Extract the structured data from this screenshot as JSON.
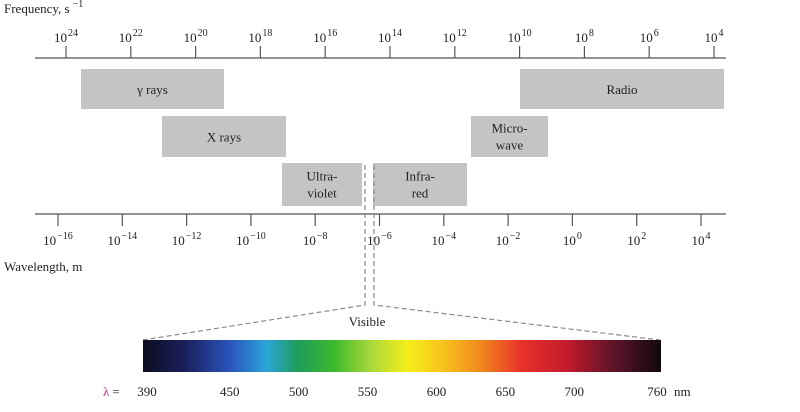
{
  "frequency_axis": {
    "label": "Frequency, s",
    "label_exp": "−1",
    "ticks": [
      {
        "base": "10",
        "exp": "24"
      },
      {
        "base": "10",
        "exp": "22"
      },
      {
        "base": "10",
        "exp": "20"
      },
      {
        "base": "10",
        "exp": "18"
      },
      {
        "base": "10",
        "exp": "16"
      },
      {
        "base": "10",
        "exp": "14"
      },
      {
        "base": "10",
        "exp": "12"
      },
      {
        "base": "10",
        "exp": "10"
      },
      {
        "base": "10",
        "exp": "8"
      },
      {
        "base": "10",
        "exp": "6"
      },
      {
        "base": "10",
        "exp": "4"
      }
    ]
  },
  "wavelength_axis": {
    "label": "Wavelength, m",
    "ticks": [
      {
        "base": "10",
        "exp": "−16"
      },
      {
        "base": "10",
        "exp": "−14"
      },
      {
        "base": "10",
        "exp": "−12"
      },
      {
        "base": "10",
        "exp": "−10"
      },
      {
        "base": "10",
        "exp": "−8"
      },
      {
        "base": "10",
        "exp": "−6"
      },
      {
        "base": "10",
        "exp": "−4"
      },
      {
        "base": "10",
        "exp": "−2"
      },
      {
        "base": "10",
        "exp": "0"
      },
      {
        "base": "10",
        "exp": "2"
      },
      {
        "base": "10",
        "exp": "4"
      }
    ]
  },
  "bands": [
    {
      "id": "gamma-rays",
      "lines": [
        "γ rays"
      ]
    },
    {
      "id": "x-rays",
      "lines": [
        "X rays"
      ]
    },
    {
      "id": "ultraviolet",
      "lines": [
        "Ultra-",
        "violet"
      ]
    },
    {
      "id": "infrared",
      "lines": [
        "Infra-",
        "red"
      ]
    },
    {
      "id": "microwave",
      "lines": [
        "Micro-",
        "wave"
      ]
    },
    {
      "id": "radio",
      "lines": [
        "Radio"
      ]
    }
  ],
  "visible": {
    "label": "Visible",
    "lambda_symbol": "λ",
    "equals": "=",
    "unit": "nm",
    "wavelengths_nm": [
      "390",
      "450",
      "500",
      "550",
      "600",
      "650",
      "700",
      "760"
    ]
  },
  "colors": {
    "band_fill": "#c4c4c4",
    "axis": "#555555",
    "lambda": "#c0307a"
  }
}
